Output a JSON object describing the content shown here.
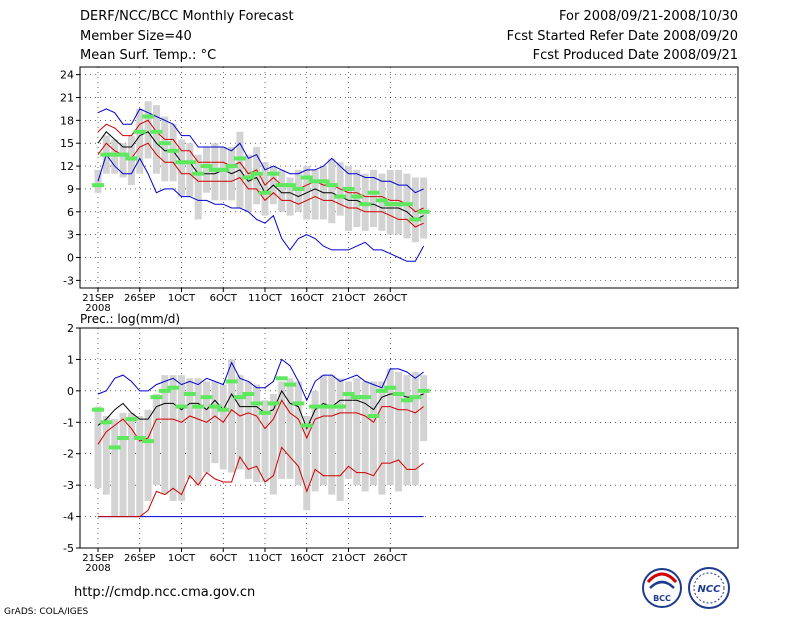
{
  "header": {
    "title": "DERF/NCC/BCC Monthly Forecast",
    "member_size": "Member Size=40",
    "variable": "Mean Surf. Temp.: °C",
    "forecast_period": "For 2008/09/21-2008/10/30",
    "start_ref": "Fcst Started Refer Date 2008/09/20",
    "produced": "Fcst Produced Date 2008/09/21"
  },
  "footer": {
    "url": "http://cmdp.ncc.cma.gov.cn",
    "credit": "GrADS: COLA/IGES",
    "logo_bcc_text": "BCC",
    "logo_ncc_text": "NCC"
  },
  "colors": {
    "box": "#d3d3d3",
    "observed_bar": "#5ee85e",
    "envelope": "#0000d0",
    "quartile": "#d00000",
    "mean": "#000000",
    "grid": "#000000"
  },
  "chart_data": [
    {
      "type": "line",
      "title": "Mean Surf. Temp.: °C",
      "ylim": [
        -4,
        25
      ],
      "yticks": [
        -3,
        0,
        3,
        6,
        9,
        12,
        15,
        18,
        21,
        24
      ],
      "xticks": [
        {
          "day": 0,
          "label": "21SEP",
          "sublabel": "2008"
        },
        {
          "day": 5,
          "label": "26SEP"
        },
        {
          "day": 10,
          "label": "1OCT"
        },
        {
          "day": 15,
          "label": "6OCT"
        },
        {
          "day": 20,
          "label": "11OCT"
        },
        {
          "day": 25,
          "label": "16OCT"
        },
        {
          "day": 30,
          "label": "21OCT"
        },
        {
          "day": 35,
          "label": "26OCT"
        }
      ],
      "x": [
        0,
        1,
        2,
        3,
        4,
        5,
        6,
        7,
        8,
        9,
        10,
        11,
        12,
        13,
        14,
        15,
        16,
        17,
        18,
        19,
        20,
        21,
        22,
        23,
        24,
        25,
        26,
        27,
        28,
        29,
        30,
        31,
        32,
        33,
        34,
        35,
        36,
        37,
        38,
        39
      ],
      "series": [
        {
          "name": "box_high",
          "values": [
            11.5,
            16,
            15.5,
            15,
            16,
            19.5,
            20.5,
            20,
            18.5,
            17.5,
            15.5,
            15,
            13.5,
            14.5,
            15,
            14.5,
            14.5,
            16.5,
            13.5,
            14.5,
            12.5,
            12,
            11.5,
            10.5,
            11.5,
            12,
            11.5,
            12,
            13,
            12.5,
            12,
            11.5,
            11,
            11.5,
            11,
            11.5,
            11.5,
            11,
            10.5,
            10.5
          ]
        },
        {
          "name": "box_low",
          "values": [
            8.5,
            11,
            11,
            10.5,
            9.5,
            11,
            13,
            11,
            10,
            10,
            8,
            8,
            5,
            8.5,
            7.5,
            7.5,
            7.5,
            6.5,
            6,
            7,
            5.5,
            7,
            6,
            5.5,
            6,
            5,
            5,
            5,
            4.5,
            5.5,
            3.5,
            4,
            3.5,
            4,
            3.5,
            3,
            3,
            2.5,
            2,
            2.5
          ]
        },
        {
          "name": "observed",
          "values": [
            9.5,
            13.5,
            13.5,
            13.5,
            13,
            16.5,
            18.5,
            16.5,
            15,
            14,
            12.5,
            12.5,
            11,
            12,
            11.5,
            11.5,
            12,
            13,
            10.5,
            11,
            8.5,
            11,
            9.5,
            9.5,
            9,
            10.5,
            10,
            10,
            9.5,
            8,
            9,
            8,
            7,
            8.5,
            7.5,
            7,
            7,
            7,
            5,
            6
          ]
        },
        {
          "name": "upper_envelope",
          "values": [
            19,
            19.5,
            19,
            17.5,
            17.5,
            19.5,
            19,
            18.5,
            18,
            17.5,
            16,
            16,
            14.5,
            14.5,
            14.5,
            14.5,
            14,
            15,
            13,
            13.5,
            11.5,
            12,
            11.5,
            11,
            11,
            11.5,
            11.5,
            12,
            13,
            12,
            11,
            11,
            10.5,
            10.5,
            10,
            10,
            9.5,
            9.5,
            8.5,
            9
          ]
        },
        {
          "name": "upper_quartile",
          "values": [
            16.5,
            17.5,
            17,
            16,
            16,
            17.5,
            18,
            16.5,
            15.5,
            15.5,
            14,
            14,
            12.5,
            12.5,
            12.5,
            12.5,
            12,
            12.5,
            11,
            11.5,
            9.5,
            10.5,
            9.5,
            9.5,
            9,
            9.5,
            10,
            9.5,
            9.5,
            9,
            8.5,
            8.5,
            8,
            8,
            8,
            7.5,
            7.5,
            7,
            6,
            6.5
          ]
        },
        {
          "name": "ensemble_mean",
          "values": [
            15,
            16.5,
            15.5,
            14.5,
            14.5,
            16,
            16.5,
            15,
            14,
            14,
            12.5,
            12.5,
            11,
            11,
            11,
            11.5,
            11,
            11.5,
            10,
            10.5,
            8.5,
            9.5,
            8.5,
            8.5,
            8,
            8.5,
            9,
            8.5,
            8.5,
            8,
            7.5,
            7.5,
            7,
            7,
            6.5,
            6.5,
            6.5,
            6,
            5,
            5.5
          ]
        },
        {
          "name": "lower_quartile",
          "values": [
            13.5,
            15,
            14,
            13.5,
            13,
            14.5,
            15,
            13.5,
            12.5,
            12.5,
            11,
            11,
            10,
            10,
            10,
            10,
            10,
            10.5,
            9,
            9,
            7.5,
            8.5,
            7.5,
            7.5,
            7,
            7.5,
            8,
            7.5,
            7.5,
            7,
            6.5,
            6.5,
            6,
            6,
            6,
            5.5,
            5,
            5,
            4,
            4.5
          ]
        },
        {
          "name": "lower_envelope",
          "values": [
            10,
            13.5,
            12,
            11,
            11,
            13,
            11,
            8.5,
            9,
            9,
            8,
            8,
            7.5,
            7.5,
            7,
            7,
            6.5,
            6.5,
            6,
            5,
            4.5,
            5.5,
            2.5,
            1,
            2.5,
            3,
            2.5,
            1.5,
            1,
            1,
            1,
            1.5,
            2,
            1,
            1,
            0.5,
            0,
            -0.5,
            -0.5,
            1.5
          ]
        }
      ]
    },
    {
      "type": "line",
      "title": "Prec.: log(mm/d)",
      "ylim": [
        -5,
        2
      ],
      "yticks": [
        -5,
        -4,
        -3,
        -2,
        -1,
        0,
        1,
        2
      ],
      "xticks": [
        {
          "day": 0,
          "label": "21SEP",
          "sublabel": "2008"
        },
        {
          "day": 5,
          "label": "26SEP"
        },
        {
          "day": 10,
          "label": "1OCT"
        },
        {
          "day": 15,
          "label": "6OCT"
        },
        {
          "day": 20,
          "label": "11OCT"
        },
        {
          "day": 25,
          "label": "16OCT"
        },
        {
          "day": 30,
          "label": "21OCT"
        },
        {
          "day": 35,
          "label": "26OCT"
        }
      ],
      "x": [
        0,
        1,
        2,
        3,
        4,
        5,
        6,
        7,
        8,
        9,
        10,
        11,
        12,
        13,
        14,
        15,
        16,
        17,
        18,
        19,
        20,
        21,
        22,
        23,
        24,
        25,
        26,
        27,
        28,
        29,
        30,
        31,
        32,
        33,
        34,
        35,
        36,
        37,
        38,
        39
      ],
      "series": [
        {
          "name": "box_high",
          "values": [
            -0.5,
            -0.8,
            -0.9,
            -0.7,
            -0.7,
            -0.8,
            -0.6,
            -0.1,
            0.5,
            0.5,
            0.5,
            0.4,
            0.4,
            0.3,
            0.3,
            0.2,
            1,
            0.5,
            0.3,
            0.2,
            -0.3,
            -0.1,
            0.3,
            0.4,
            0.3,
            -0.8,
            0,
            0.5,
            0.5,
            0.4,
            0.3,
            0.4,
            0.3,
            0.3,
            0.3,
            0.7,
            0.6,
            0.5,
            0.6,
            0.5
          ]
        },
        {
          "name": "box_low",
          "values": [
            -3.1,
            -3.3,
            -4,
            -4,
            -4,
            -4,
            -3.5,
            -3,
            -3.3,
            -3.5,
            -3.5,
            -2.8,
            -3,
            -2.6,
            -2.3,
            -2.5,
            -2.6,
            -2.5,
            -2.8,
            -2.9,
            -2.9,
            -3.3,
            -2.8,
            -2.8,
            -3,
            -3.8,
            -3.2,
            -3,
            -3.3,
            -3.5,
            -2.8,
            -3,
            -3.2,
            -3,
            -3.3,
            -3,
            -3.2,
            -3,
            -3,
            -1.6
          ]
        },
        {
          "name": "observed",
          "values": [
            -0.6,
            -1.0,
            -1.8,
            -1.5,
            -0.9,
            -1.5,
            -1.6,
            -0.2,
            0,
            0.1,
            -0.5,
            -0.1,
            -0.5,
            -0.2,
            -0.5,
            -0.6,
            0.3,
            -0.2,
            -0.1,
            -0.4,
            -0.7,
            -0.4,
            0.4,
            0.2,
            -0.4,
            -1.1,
            -0.5,
            -0.5,
            -0.5,
            -0.5,
            -0.1,
            -0.2,
            -0.2,
            -0.8,
            0,
            0.1,
            -0.1,
            -0.3,
            -0.2,
            0
          ]
        },
        {
          "name": "upper_envelope",
          "values": [
            -0.1,
            0,
            0.4,
            0.5,
            0.3,
            0,
            0,
            0.2,
            0.3,
            0.4,
            0.2,
            0.3,
            0.2,
            0.4,
            0.3,
            0.2,
            0.9,
            0.4,
            0.3,
            0.1,
            0.1,
            0.3,
            1,
            0.8,
            0.3,
            -0.3,
            0.3,
            0.5,
            0.5,
            0.3,
            0.4,
            0.5,
            0.3,
            0.2,
            0.1,
            0.7,
            0.7,
            0.6,
            0.4,
            0.6
          ]
        },
        {
          "name": "ensemble_mean",
          "values": [
            -1.1,
            -0.9,
            -0.6,
            -0.4,
            -0.7,
            -0.9,
            -0.9,
            -0.5,
            -0.4,
            -0.4,
            -0.6,
            -0.4,
            -0.4,
            -0.6,
            -0.3,
            -0.6,
            -0.1,
            -0.5,
            -0.5,
            -0.5,
            -0.7,
            -0.6,
            0,
            -0.4,
            -0.5,
            -1.2,
            -0.6,
            -0.4,
            -0.5,
            -0.3,
            -0.3,
            -0.3,
            -0.4,
            -0.6,
            -0.2,
            -0.1,
            -0.1,
            -0.2,
            -0.2,
            -0.1
          ]
        },
        {
          "name": "upper_quartile",
          "values": [
            -1.7,
            -1.3,
            -1.1,
            -0.9,
            -1.2,
            -1.6,
            -1.5,
            -0.9,
            -0.9,
            -0.9,
            -1,
            -0.8,
            -0.9,
            -1,
            -0.8,
            -1,
            -0.6,
            -0.8,
            -0.7,
            -0.8,
            -1.2,
            -0.9,
            -0.3,
            -0.7,
            -0.9,
            -1.5,
            -0.9,
            -0.8,
            -0.8,
            -0.7,
            -0.7,
            -0.7,
            -0.8,
            -1,
            -0.5,
            -0.5,
            -0.6,
            -0.6,
            -0.7,
            -0.5
          ]
        },
        {
          "name": "lower_quartile",
          "values": [
            -4,
            -4,
            -4,
            -4,
            -4,
            -4,
            -3.8,
            -3.2,
            -3.3,
            -3.1,
            -3.3,
            -2.7,
            -3,
            -2.6,
            -2.8,
            -2.9,
            -2.9,
            -2.1,
            -2.5,
            -2.4,
            -2.9,
            -2.7,
            -1.8,
            -2.1,
            -2.4,
            -3.2,
            -2.5,
            -2.7,
            -2.7,
            -2.7,
            -2.4,
            -2.6,
            -2.6,
            -2.7,
            -2.3,
            -2.3,
            -2.2,
            -2.5,
            -2.5,
            -2.3
          ]
        },
        {
          "name": "lower_envelope",
          "values": [
            -4,
            -4,
            -4,
            -4,
            -4,
            -4,
            -4,
            -4,
            -4,
            -4,
            -4,
            -4,
            -4,
            -4,
            -4,
            -4,
            -4,
            -4,
            -4,
            -4,
            -4,
            -4,
            -4,
            -4,
            -4,
            -4,
            -4,
            -4,
            -4,
            -4,
            -4,
            -4,
            -4,
            -4,
            -4,
            -4,
            -4,
            -4,
            -4,
            -4
          ]
        }
      ]
    }
  ]
}
